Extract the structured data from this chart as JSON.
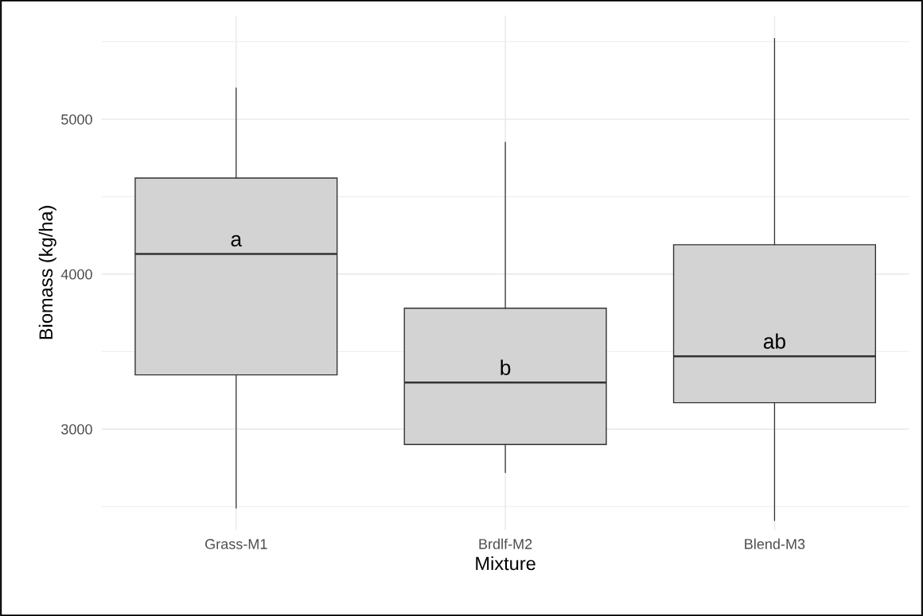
{
  "chart_data": {
    "type": "box",
    "xlabel": "Mixture",
    "ylabel": "Biomass (kg/ha)",
    "categories": [
      "Grass-M1",
      "Brdlf-M2",
      "Blend-M3"
    ],
    "boxes": [
      {
        "low": 2490,
        "q1": 3350,
        "median": 4130,
        "q3": 4620,
        "high": 5200
      },
      {
        "low": 2720,
        "q1": 2900,
        "median": 3300,
        "q3": 3780,
        "high": 4850
      },
      {
        "low": 2410,
        "q1": 3170,
        "median": 3470,
        "q3": 4190,
        "high": 5520
      }
    ],
    "color": "#d3d3d3",
    "ylim": [
      2350,
      5670
    ],
    "yticks": [
      3000,
      4000,
      5000
    ],
    "grid": true,
    "annotations": [
      "a",
      "b",
      "ab"
    ]
  }
}
